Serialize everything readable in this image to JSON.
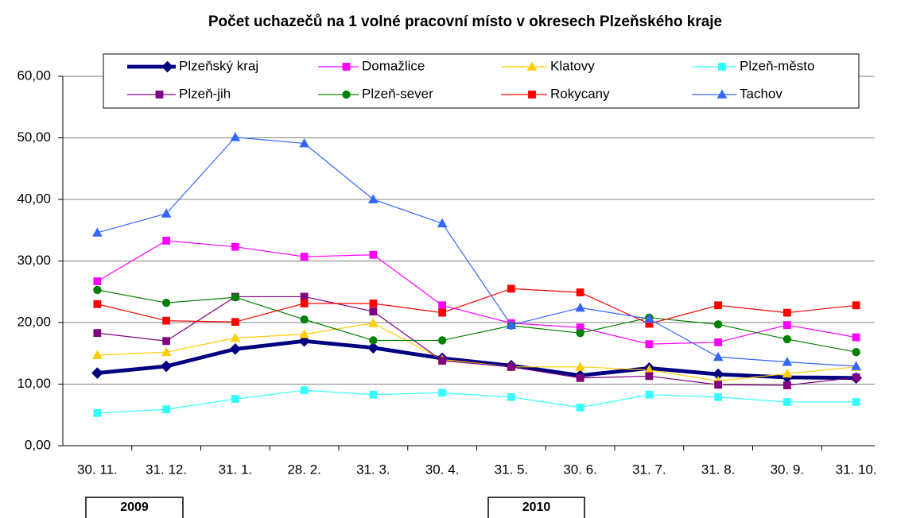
{
  "chart_data": {
    "type": "line",
    "title": "Počet uchazečů na 1 volné pracovní místo v okresech Plzeňského kraje",
    "categories": [
      "30. 11.",
      "31. 12.",
      "31. 1.",
      "28. 2.",
      "31. 3.",
      "30. 4.",
      "31. 5.",
      "30. 6.",
      "31. 7.",
      "31. 8.",
      "30. 9.",
      "31. 10."
    ],
    "year_labels": [
      "2009",
      "2010"
    ],
    "ylim": [
      0,
      60
    ],
    "yticks": [
      {
        "value": 0,
        "label": "0,00"
      },
      {
        "value": 10,
        "label": "10,00"
      },
      {
        "value": 20,
        "label": "20,00"
      },
      {
        "value": 30,
        "label": "30,00"
      },
      {
        "value": 40,
        "label": "40,00"
      },
      {
        "value": 50,
        "label": "50,00"
      },
      {
        "value": 60,
        "label": "60,00"
      }
    ],
    "grid": true,
    "legend": "top",
    "series": [
      {
        "name": "Plzeňský kraj",
        "color": "#000080",
        "marker": "diamond",
        "line_width": 4,
        "values": [
          11.8,
          12.9,
          15.7,
          17.0,
          15.9,
          14.2,
          13.0,
          11.4,
          12.6,
          11.6,
          11.1,
          11.0
        ]
      },
      {
        "name": "Domažlice",
        "color": "#ff00ff",
        "marker": "square",
        "line_width": 1,
        "values": [
          26.7,
          33.3,
          32.3,
          30.7,
          31.0,
          22.8,
          19.9,
          19.2,
          16.5,
          16.8,
          19.6,
          17.6
        ]
      },
      {
        "name": "Klatovy",
        "color": "#ffcc00",
        "marker": "triangle",
        "line_width": 1,
        "values": [
          14.7,
          15.2,
          17.5,
          18.1,
          19.9,
          14.0,
          12.8,
          12.8,
          12.3,
          10.5,
          11.7,
          12.8
        ]
      },
      {
        "name": "Plzeň-město",
        "color": "#33ffff",
        "marker": "square",
        "line_width": 1,
        "values": [
          5.3,
          5.9,
          7.6,
          9.0,
          8.3,
          8.6,
          7.9,
          6.2,
          8.3,
          7.9,
          7.1,
          7.1
        ]
      },
      {
        "name": "Plzeň-jih",
        "color": "#800080",
        "marker": "square",
        "line_width": 1,
        "values": [
          18.3,
          17.0,
          24.2,
          24.2,
          21.8,
          13.8,
          12.8,
          11.0,
          11.3,
          9.9,
          9.8,
          11.1
        ]
      },
      {
        "name": "Plzeň-sever",
        "color": "#008000",
        "marker": "circle",
        "line_width": 1,
        "values": [
          25.3,
          23.2,
          24.1,
          20.5,
          17.1,
          17.1,
          19.5,
          18.3,
          20.8,
          19.7,
          17.3,
          15.2
        ]
      },
      {
        "name": "Rokycany",
        "color": "#ff0000",
        "marker": "square",
        "line_width": 1,
        "values": [
          23.0,
          20.3,
          20.1,
          23.1,
          23.1,
          21.6,
          25.5,
          24.9,
          19.8,
          22.8,
          21.6,
          22.8
        ]
      },
      {
        "name": "Tachov",
        "color": "#3366ff",
        "marker": "triangle",
        "line_width": 1,
        "values": [
          34.6,
          37.7,
          50.1,
          49.1,
          40.0,
          36.1,
          19.6,
          22.4,
          20.6,
          14.4,
          13.6,
          12.9
        ]
      }
    ]
  }
}
